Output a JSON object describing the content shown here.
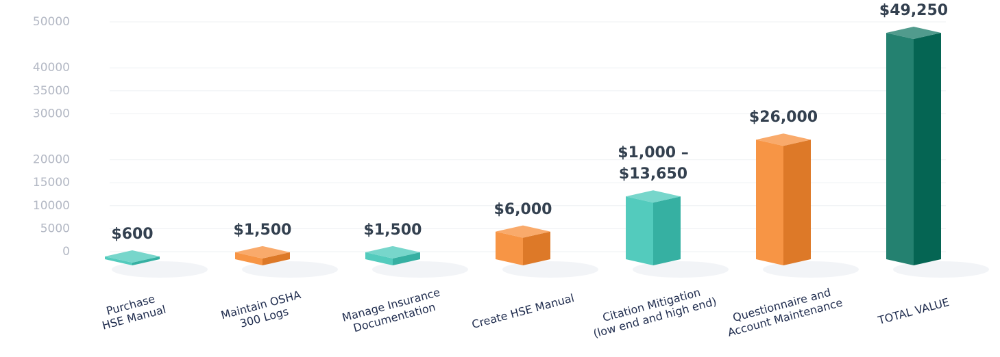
{
  "chart_data": {
    "type": "bar3d",
    "categories": [
      "Purchase\nHSE Manual",
      "Maintain OSHA\n300 Logs",
      "Manage Insurance\nDocumentation",
      "Create HSE Manual",
      "Citation Mitigation\n(low end and high end)",
      "Questionnaire and\nAccount Maintenance",
      "TOTAL VALUE"
    ],
    "values": [
      600,
      1500,
      1500,
      6000,
      13650,
      26000,
      49250
    ],
    "value_labels": [
      "$600",
      "$1,500",
      "$1,500",
      "$6,000",
      "$1,000 –\n$13,650",
      "$26,000",
      "$49,250"
    ],
    "colors": [
      "#3cc4b4",
      "#f6862c",
      "#3cc4b4",
      "#f6862c",
      "#3cc4b4",
      "#f6862c",
      "#06705c"
    ],
    "ylim": [
      0,
      50000
    ],
    "yticks": [
      0,
      5000,
      10000,
      15000,
      20000,
      30000,
      35000,
      40000,
      50000
    ],
    "grid": true
  }
}
